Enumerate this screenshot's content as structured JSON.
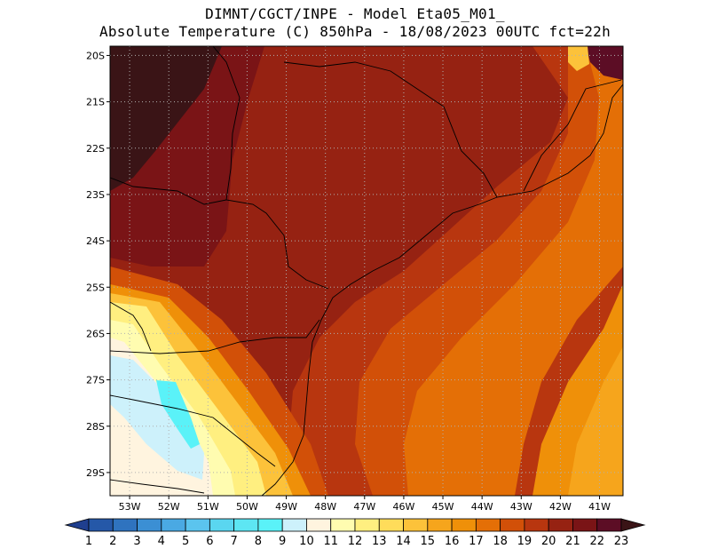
{
  "title": {
    "line1": "DIMNT/CGCT/INPE -  Model Eta05_M01_",
    "line2": "Absolute Temperature (C) 850hPa -  18/08/2023 00UTC fct=22h"
  },
  "axes": {
    "lat_labels": [
      "20S",
      "21S",
      "22S",
      "23S",
      "24S",
      "25S",
      "26S",
      "27S",
      "28S",
      "29S"
    ],
    "lon_labels": [
      "53W",
      "52W",
      "51W",
      "50W",
      "49W",
      "48W",
      "47W",
      "46W",
      "45W",
      "44W",
      "43W",
      "42W",
      "41W"
    ]
  },
  "colorbar": {
    "labels": [
      "1",
      "2",
      "3",
      "4",
      "5",
      "6",
      "7",
      "8",
      "9",
      "10",
      "11",
      "12",
      "13",
      "14",
      "15",
      "16",
      "17",
      "18",
      "19",
      "20",
      "21",
      "22",
      "23"
    ],
    "colors": [
      "#1f3f8f",
      "#2558a8",
      "#2f73bf",
      "#3b8fd4",
      "#4aa9e3",
      "#5bc4ee",
      "#5ad6f0",
      "#5de6f3",
      "#5af2f8",
      "#cdf1fb",
      "#fff4df",
      "#fffcb0",
      "#ffef80",
      "#ffdc5a",
      "#fcc23a",
      "#f6a51c",
      "#ef9009",
      "#e46f06",
      "#d25008",
      "#b8360f",
      "#962212",
      "#7a1416",
      "#5c0d25",
      "#3a1416"
    ]
  },
  "chart_data": {
    "type": "heatmap",
    "variable": "Absolute Temperature (C) 850hPa",
    "date": "18/08/2023 00UTC",
    "forecast": "fct=22h",
    "lon_range_deg": [
      -53.5,
      -40.4
    ],
    "lat_range_deg": [
      -29.5,
      -19.8
    ],
    "scale_min": 1,
    "scale_max": 23
  }
}
